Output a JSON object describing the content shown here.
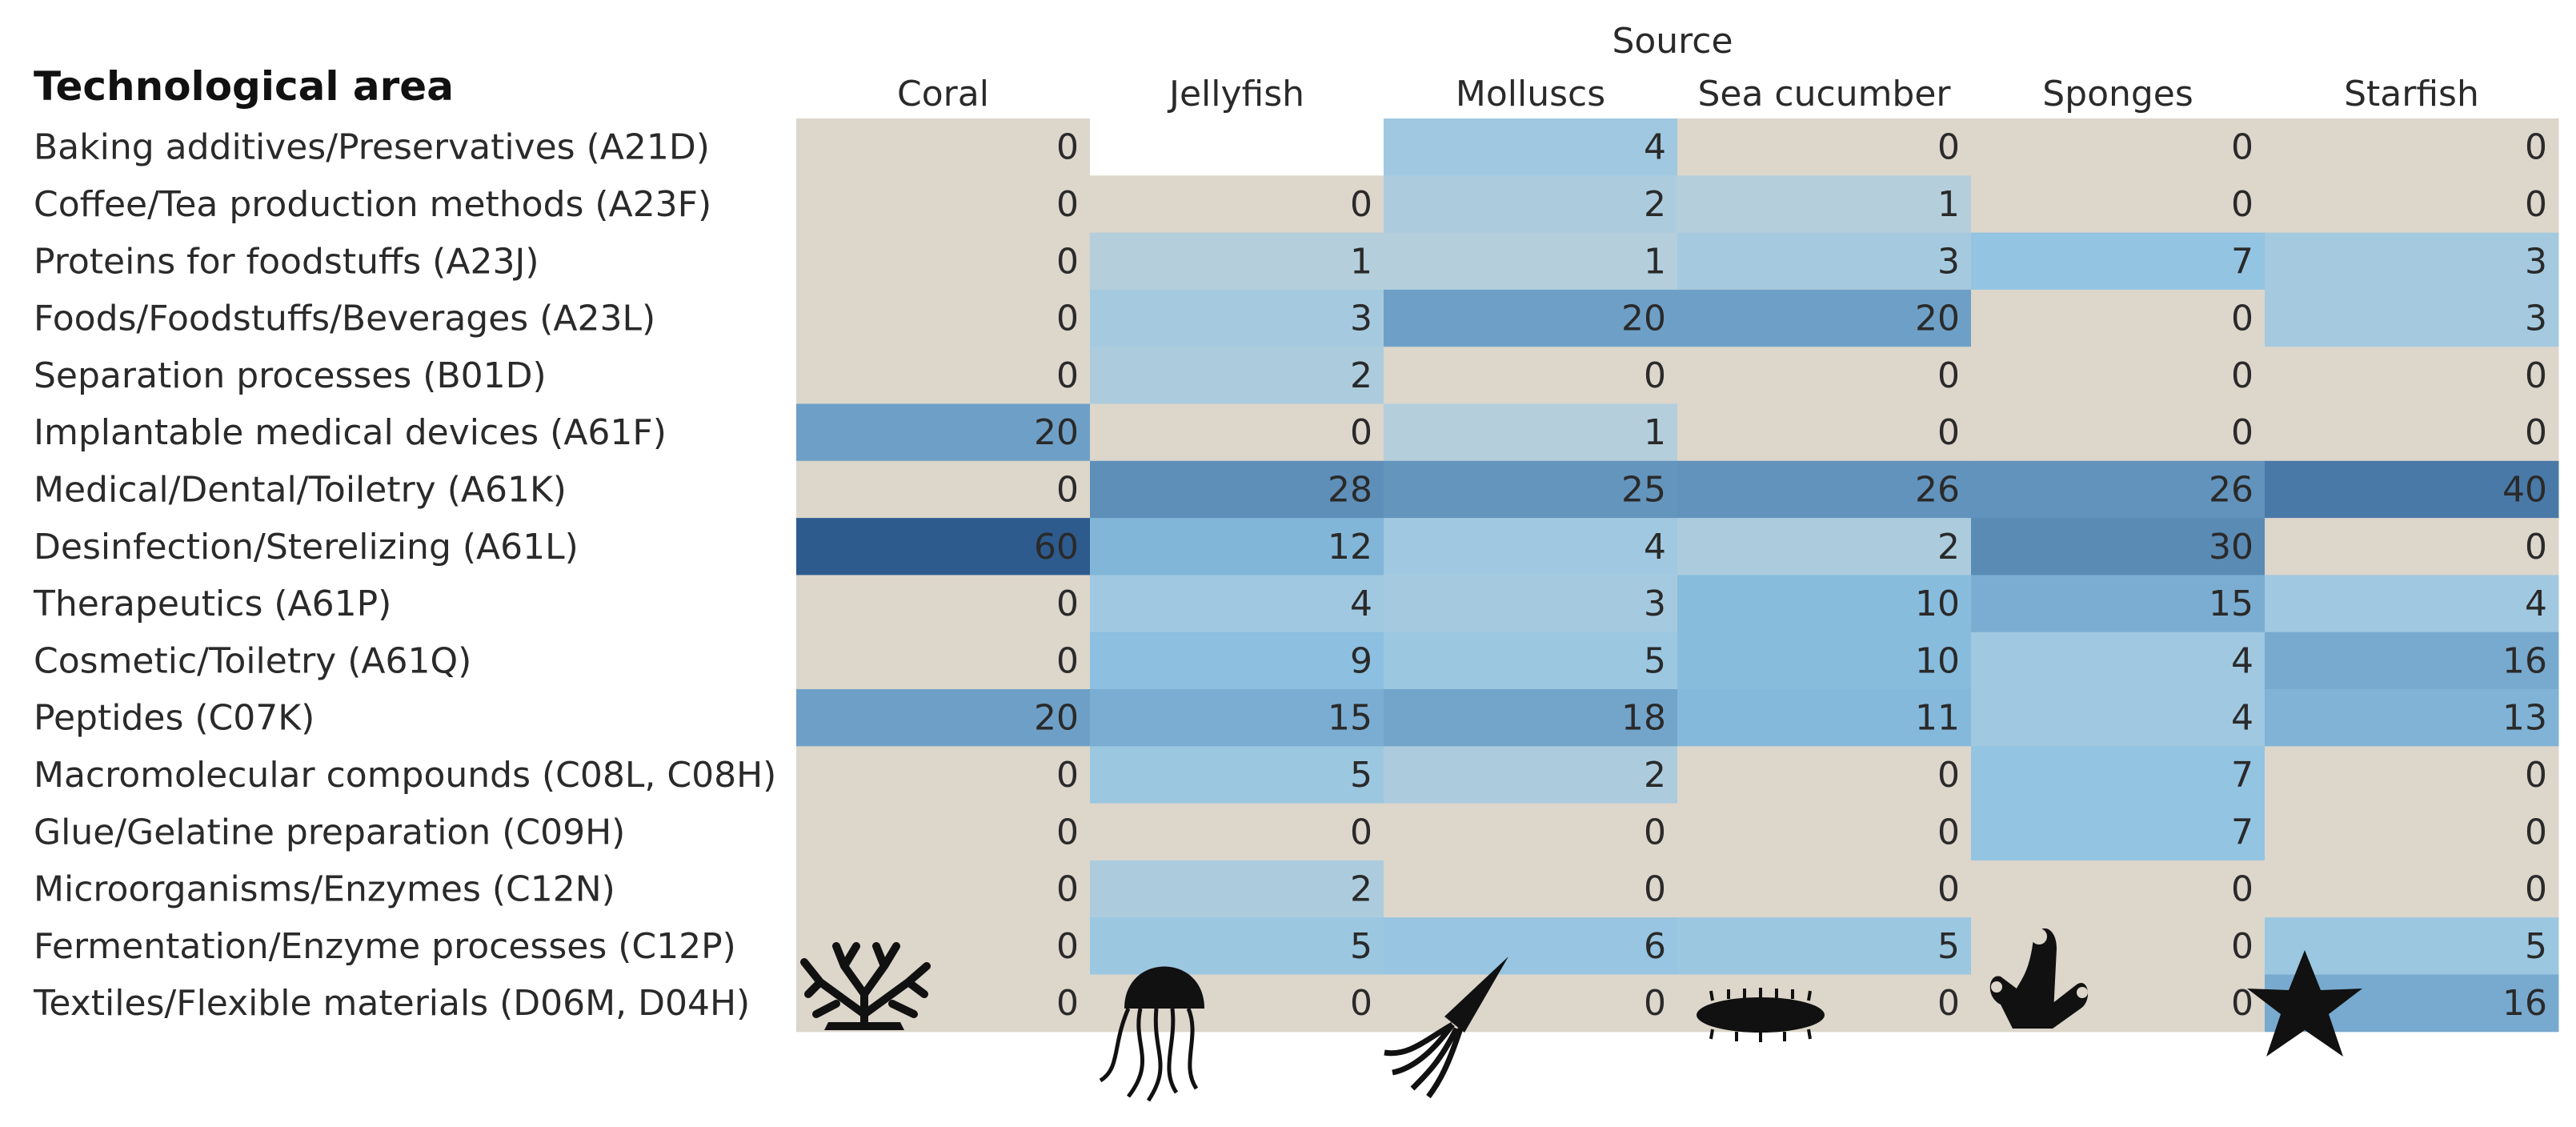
{
  "chart_data": {
    "type": "heatmap",
    "title": "Technological area",
    "column_group_label": "Source",
    "row_header": "Technological area",
    "columns": [
      "Coral",
      "Jellyfish",
      "Molluscs",
      "Sea cucumber",
      "Sponges",
      "Starfish"
    ],
    "rows": [
      "Baking additives/Preservatives (A21D)",
      "Coffee/Tea production methods (A23F)",
      "Proteins for foodstuffs (A23J)",
      "Foods/Foodstuffs/Beverages (A23L)",
      "Separation processes (B01D)",
      "Implantable medical devices (A61F)",
      "Medical/Dental/Toiletry (A61K)",
      "Desinfection/Sterelizing (A61L)",
      "Therapeutics (A61P)",
      "Cosmetic/Toiletry (A61Q)",
      "Peptides (C07K)",
      "Macromolecular compounds (C08L, C08H)",
      "Glue/Gelatine preparation (C09H)",
      "Microorganisms/Enzymes (C12N)",
      "Fermentation/Enzyme processes (C12P)",
      "Textiles/Flexible materials (D06M, D04H)"
    ],
    "values": [
      [
        0,
        null,
        4,
        0,
        0,
        0
      ],
      [
        0,
        0,
        2,
        1,
        0,
        0
      ],
      [
        0,
        1,
        1,
        3,
        7,
        3
      ],
      [
        0,
        3,
        20,
        20,
        0,
        3
      ],
      [
        0,
        2,
        0,
        0,
        0,
        0
      ],
      [
        20,
        0,
        1,
        0,
        0,
        0
      ],
      [
        0,
        28,
        25,
        26,
        26,
        40
      ],
      [
        60,
        12,
        4,
        2,
        30,
        0
      ],
      [
        0,
        4,
        3,
        10,
        15,
        4
      ],
      [
        0,
        9,
        5,
        10,
        4,
        16
      ],
      [
        20,
        15,
        18,
        11,
        4,
        13
      ],
      [
        0,
        5,
        2,
        0,
        7,
        0
      ],
      [
        0,
        0,
        0,
        0,
        7,
        0
      ],
      [
        0,
        2,
        0,
        0,
        0,
        0
      ],
      [
        0,
        5,
        6,
        5,
        0,
        5
      ],
      [
        0,
        0,
        0,
        0,
        0,
        16
      ]
    ],
    "value_range": [
      0,
      60
    ],
    "colors": {
      "zero": "#dcd6cb",
      "low": "#c9d4d8",
      "mid": "#8fc3e3",
      "high": "#2d5b8e",
      "text_dark": "#2a2a2a",
      "text_light": "#ffffff"
    },
    "icons": [
      "coral-icon",
      "jellyfish-icon",
      "squid-icon",
      "sea-cucumber-icon",
      "sponge-icon",
      "starfish-icon"
    ]
  }
}
